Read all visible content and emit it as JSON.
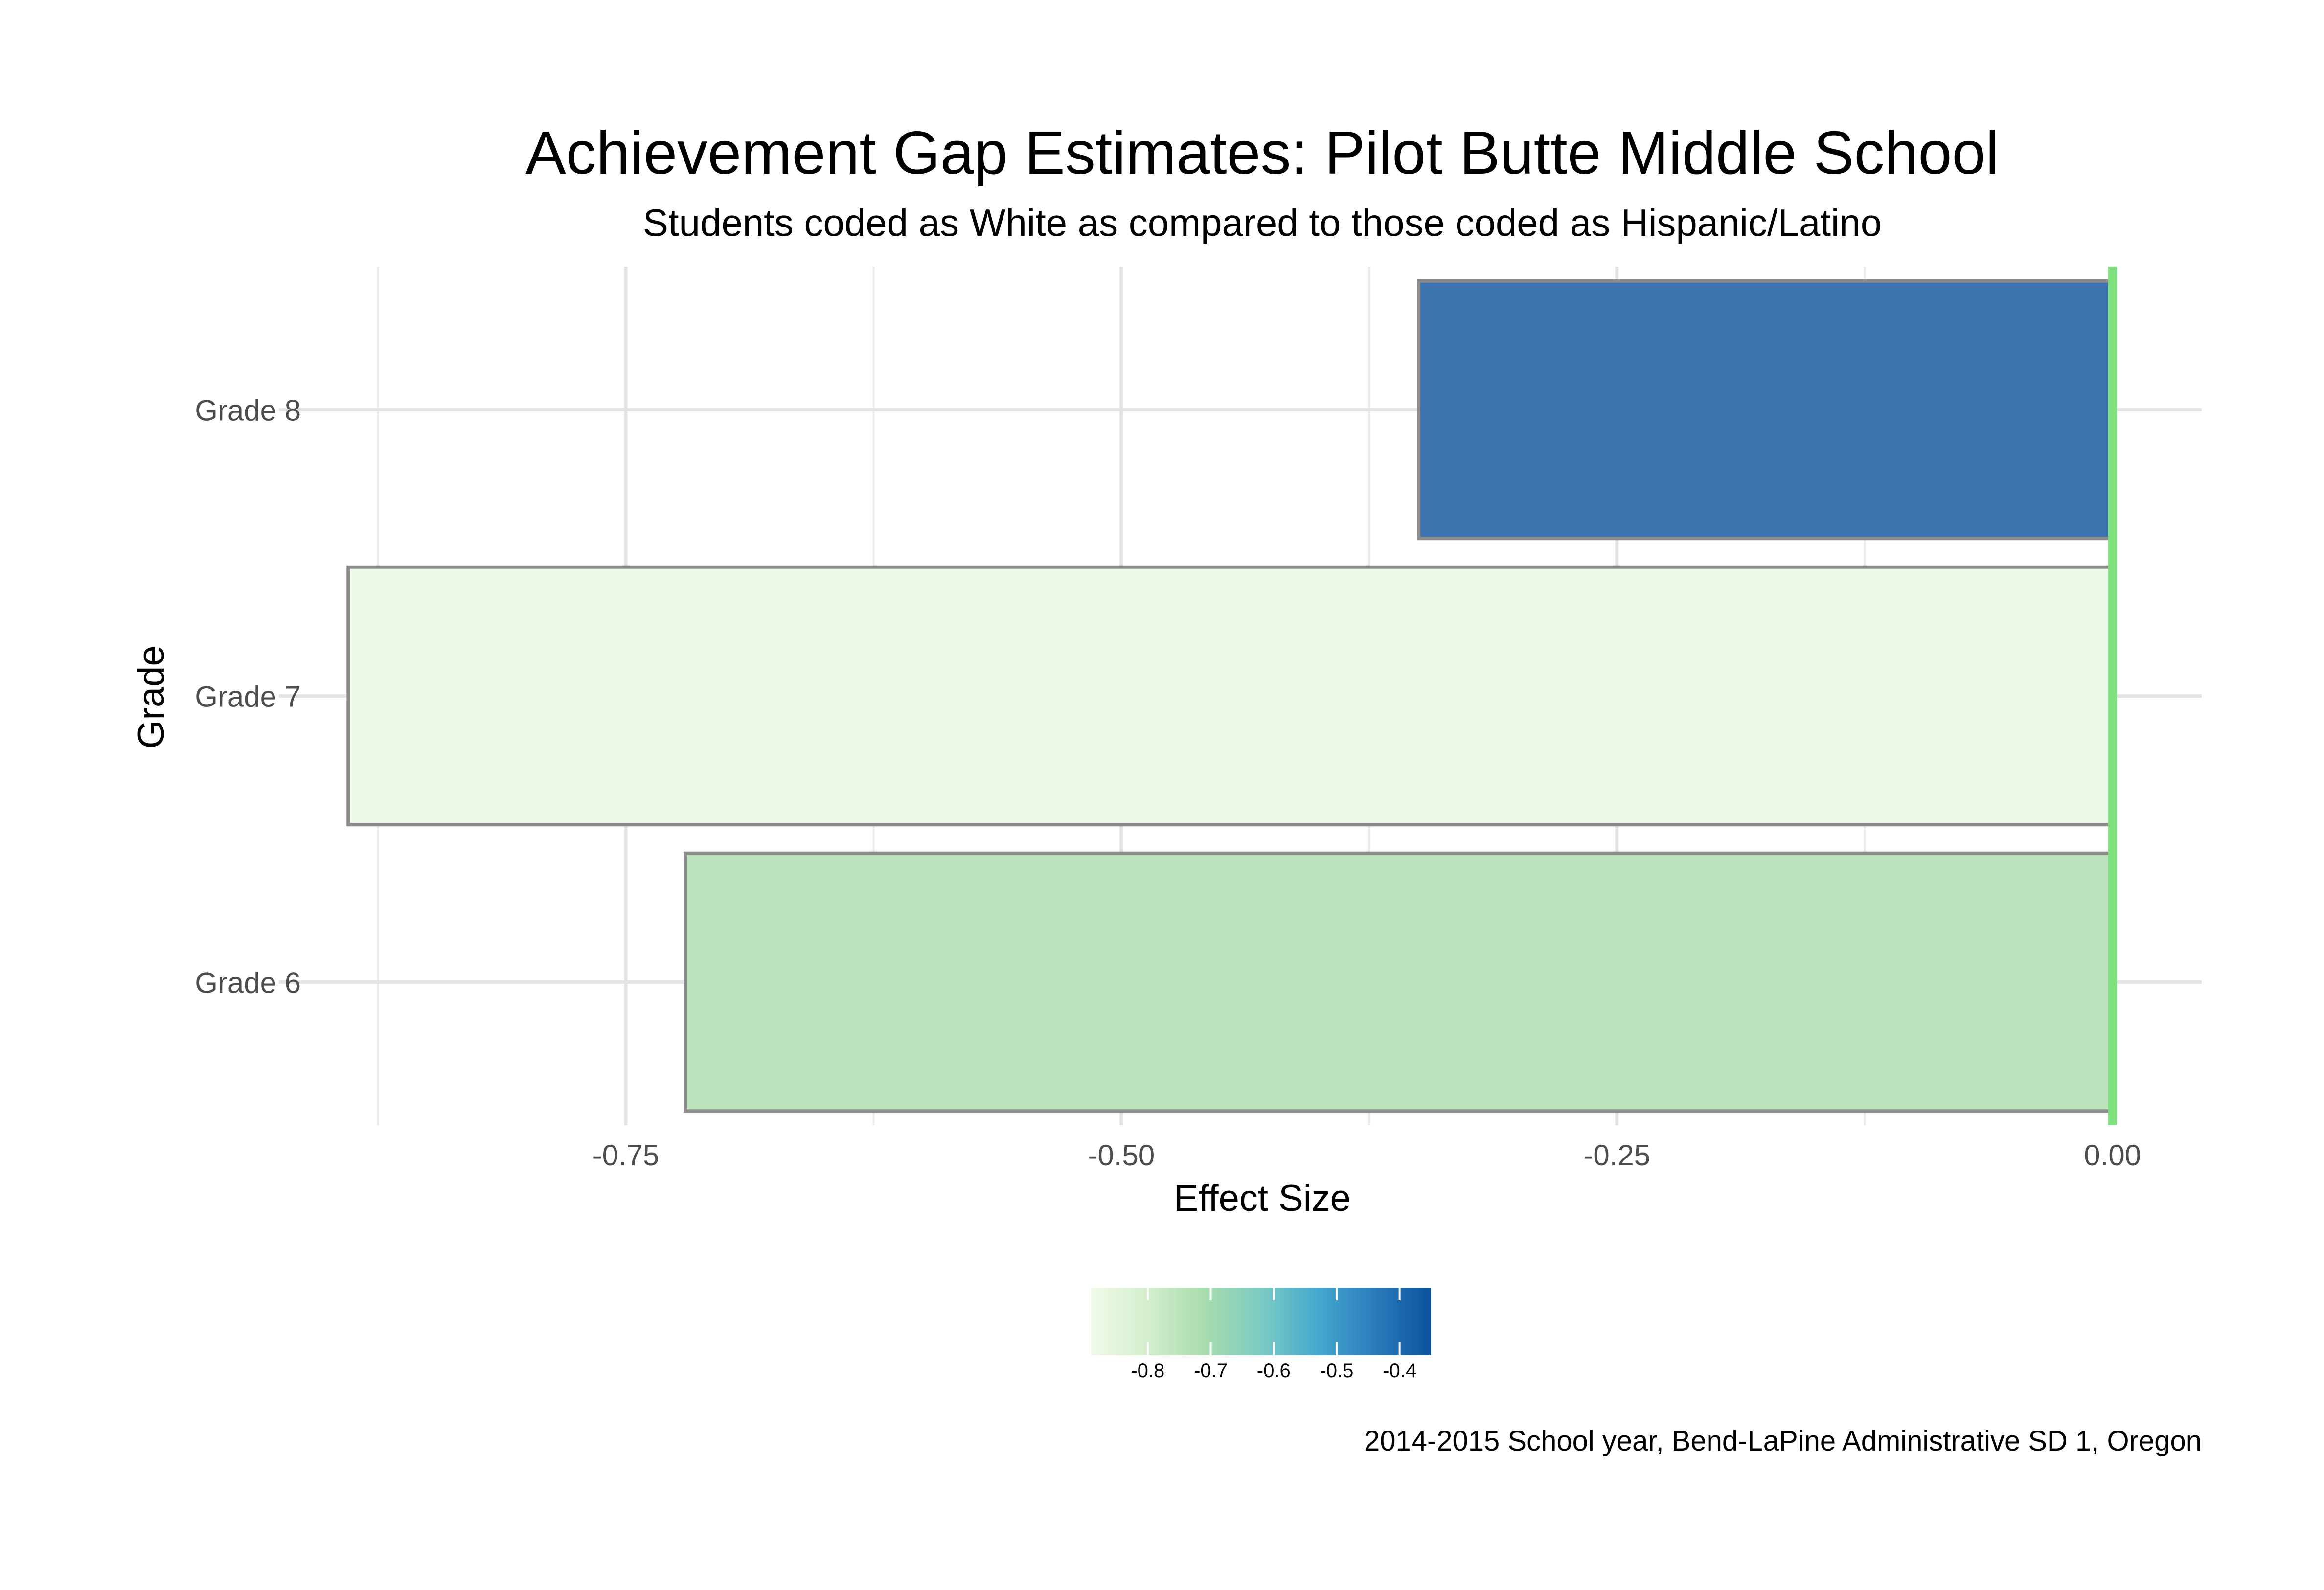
{
  "chart_data": {
    "type": "bar",
    "orientation": "horizontal",
    "title": "Achievement Gap Estimates: Pilot Butte Middle School",
    "subtitle": "Students coded as White as compared to those coded as Hispanic/Latino",
    "xlabel": "Effect Size",
    "ylabel": "Grade",
    "caption": "2014-2015 School year, Bend-LaPine Administrative SD 1, Oregon",
    "categories": [
      "Grade 6",
      "Grade 7",
      "Grade 8"
    ],
    "values": [
      -0.72,
      -0.89,
      -0.35
    ],
    "xlim": [
      -0.925,
      0.045
    ],
    "x_ticks": [
      -0.75,
      -0.5,
      -0.25,
      0.0
    ],
    "x_tick_labels": [
      "-0.75",
      "-0.50",
      "-0.25",
      "0.00"
    ],
    "reference_line": {
      "x": 0.0,
      "color": "#7fe080"
    },
    "bar_fill_colors": [
      "#bde4bf",
      "#eef8e8",
      "#3d74b0"
    ],
    "bar_border_color": "#8c8c8c",
    "grid": true,
    "legend": {
      "type": "colorbar",
      "placement": "bottom",
      "ticks": [
        -0.8,
        -0.7,
        -0.6,
        -0.5,
        -0.4
      ],
      "tick_labels": [
        "-0.8",
        "-0.7",
        "-0.6",
        "-0.5",
        "-0.4"
      ],
      "range": [
        -0.89,
        -0.35
      ],
      "colors": [
        "#f1fae9",
        "#d3eecd",
        "#a8dcad",
        "#7bcbc3",
        "#45a8cf",
        "#2b7cbc",
        "#0c529c"
      ]
    }
  }
}
